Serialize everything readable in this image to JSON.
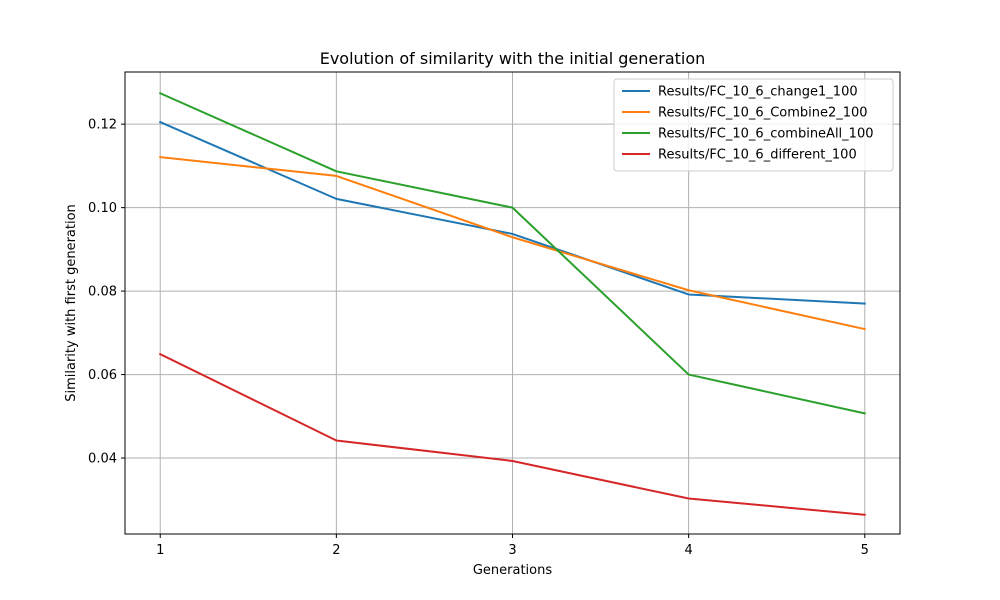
{
  "chart_data": {
    "type": "line",
    "title": "Evolution of similarity with the initial generation",
    "xlabel": "Generations",
    "ylabel": "Similarity with first generation",
    "x": [
      1,
      2,
      3,
      4,
      5
    ],
    "xticks": [
      "1",
      "2",
      "3",
      "4",
      "5"
    ],
    "xlim": [
      0.8,
      5.2
    ],
    "yticks": [
      0.04,
      0.06,
      0.08,
      0.1,
      0.12
    ],
    "ytick_labels": [
      "0.04",
      "0.06",
      "0.08",
      "0.10",
      "0.12"
    ],
    "ylim": [
      0.0218,
      0.1325
    ],
    "grid": true,
    "legend_position": "top-right",
    "series": [
      {
        "name": "Results/FC_10_6_change1_100",
        "color": "#1f77b4",
        "values": [
          0.1205,
          0.1021,
          0.0937,
          0.0792,
          0.077
        ]
      },
      {
        "name": "Results/FC_10_6_Combine2_100",
        "color": "#ff7f0e",
        "values": [
          0.1121,
          0.1076,
          0.0929,
          0.0802,
          0.0709
        ]
      },
      {
        "name": "Results/FC_10_6_combineAll_100",
        "color": "#2ca02c",
        "values": [
          0.1274,
          0.1087,
          0.1,
          0.06,
          0.0507
        ]
      },
      {
        "name": "Results/FC_10_6_different_100",
        "color": "#d62728",
        "values": [
          0.0649,
          0.0442,
          0.0393,
          0.0303,
          0.0264
        ]
      }
    ]
  }
}
